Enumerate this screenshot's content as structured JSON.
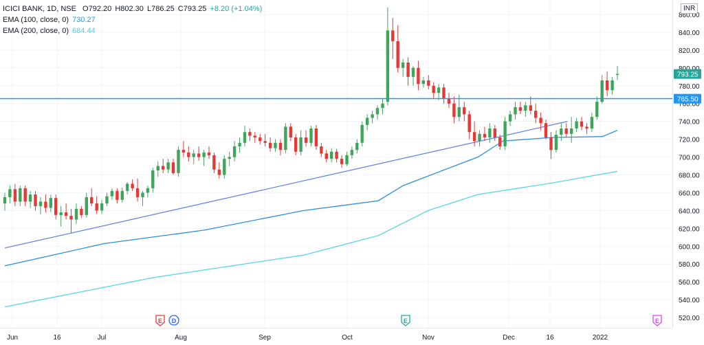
{
  "header": {
    "symbol": "ICICI BANK, 1D, NSE",
    "open": "O792.20",
    "high": "H802.30",
    "low": "L786.25",
    "close": "C793.25",
    "change": "+8.20 (+1.04%)"
  },
  "indicators": [
    {
      "label": "EMA (100, close, 0)",
      "value": "730.27",
      "color": "#2196f3"
    },
    {
      "label": "EMA (200, close, 0)",
      "value": "684.44",
      "color": "#4dd0e1"
    }
  ],
  "currency": "INR",
  "price_tags": {
    "last": "793.25",
    "level": "765.50"
  },
  "colors": {
    "up": "#26a69a",
    "up_body": "#3fa55b",
    "down": "#e53935",
    "level_line": "#2196f3",
    "ema100": "#2a8fd9",
    "ema200": "#56d4ea",
    "trendline": "#5b7fe0",
    "grid": "#f0f3fa",
    "axis_text": "#131722"
  },
  "events": [
    {
      "letters": [
        "E",
        "D"
      ],
      "month": "Aug"
    },
    {
      "letters": [
        "E"
      ],
      "month": "Nov"
    },
    {
      "letters": [
        "E"
      ],
      "month": "2022"
    }
  ],
  "chart_data": {
    "type": "candlestick",
    "y_axis": {
      "min": 510,
      "max": 870,
      "ticks": [
        520,
        540,
        560,
        580,
        600,
        620,
        640,
        660,
        680,
        700,
        720,
        740,
        760,
        780,
        800,
        820,
        840,
        860
      ],
      "unit": "INR"
    },
    "x_axis": {
      "labels": [
        "Jun",
        "16",
        "Jul",
        "Aug",
        "Sep",
        "Oct",
        "Nov",
        "Dec",
        "16",
        "2022"
      ]
    },
    "horizontal_level": 765.5,
    "candles": [
      {
        "o": 648,
        "h": 660,
        "l": 640,
        "c": 655
      },
      {
        "o": 655,
        "h": 668,
        "l": 648,
        "c": 664
      },
      {
        "o": 664,
        "h": 670,
        "l": 645,
        "c": 650
      },
      {
        "o": 650,
        "h": 668,
        "l": 645,
        "c": 665
      },
      {
        "o": 665,
        "h": 668,
        "l": 645,
        "c": 650
      },
      {
        "o": 650,
        "h": 662,
        "l": 643,
        "c": 658
      },
      {
        "o": 658,
        "h": 662,
        "l": 640,
        "c": 645
      },
      {
        "o": 645,
        "h": 655,
        "l": 636,
        "c": 650
      },
      {
        "o": 650,
        "h": 658,
        "l": 638,
        "c": 643
      },
      {
        "o": 643,
        "h": 658,
        "l": 638,
        "c": 654
      },
      {
        "o": 654,
        "h": 658,
        "l": 630,
        "c": 635
      },
      {
        "o": 635,
        "h": 645,
        "l": 622,
        "c": 638
      },
      {
        "o": 638,
        "h": 648,
        "l": 630,
        "c": 634
      },
      {
        "o": 634,
        "h": 642,
        "l": 615,
        "c": 630
      },
      {
        "o": 630,
        "h": 648,
        "l": 625,
        "c": 642
      },
      {
        "o": 642,
        "h": 645,
        "l": 632,
        "c": 635
      },
      {
        "o": 635,
        "h": 660,
        "l": 632,
        "c": 655
      },
      {
        "o": 655,
        "h": 665,
        "l": 645,
        "c": 648
      },
      {
        "o": 648,
        "h": 656,
        "l": 636,
        "c": 640
      },
      {
        "o": 640,
        "h": 652,
        "l": 636,
        "c": 648
      },
      {
        "o": 648,
        "h": 660,
        "l": 645,
        "c": 656
      },
      {
        "o": 656,
        "h": 665,
        "l": 652,
        "c": 662
      },
      {
        "o": 662,
        "h": 665,
        "l": 648,
        "c": 652
      },
      {
        "o": 652,
        "h": 666,
        "l": 649,
        "c": 662
      },
      {
        "o": 662,
        "h": 672,
        "l": 658,
        "c": 670
      },
      {
        "o": 670,
        "h": 675,
        "l": 662,
        "c": 665
      },
      {
        "o": 665,
        "h": 676,
        "l": 650,
        "c": 655
      },
      {
        "o": 655,
        "h": 662,
        "l": 645,
        "c": 660
      },
      {
        "o": 660,
        "h": 668,
        "l": 655,
        "c": 665
      },
      {
        "o": 665,
        "h": 688,
        "l": 660,
        "c": 685
      },
      {
        "o": 685,
        "h": 695,
        "l": 678,
        "c": 690
      },
      {
        "o": 690,
        "h": 698,
        "l": 682,
        "c": 686
      },
      {
        "o": 686,
        "h": 698,
        "l": 682,
        "c": 694
      },
      {
        "o": 694,
        "h": 698,
        "l": 680,
        "c": 682
      },
      {
        "o": 682,
        "h": 712,
        "l": 678,
        "c": 708
      },
      {
        "o": 708,
        "h": 718,
        "l": 700,
        "c": 705
      },
      {
        "o": 705,
        "h": 712,
        "l": 695,
        "c": 700
      },
      {
        "o": 700,
        "h": 708,
        "l": 692,
        "c": 704
      },
      {
        "o": 704,
        "h": 712,
        "l": 696,
        "c": 700
      },
      {
        "o": 700,
        "h": 708,
        "l": 690,
        "c": 705
      },
      {
        "o": 705,
        "h": 712,
        "l": 698,
        "c": 702
      },
      {
        "o": 702,
        "h": 705,
        "l": 682,
        "c": 686
      },
      {
        "o": 686,
        "h": 694,
        "l": 676,
        "c": 680
      },
      {
        "o": 680,
        "h": 702,
        "l": 676,
        "c": 698
      },
      {
        "o": 698,
        "h": 706,
        "l": 690,
        "c": 700
      },
      {
        "o": 700,
        "h": 718,
        "l": 695,
        "c": 712
      },
      {
        "o": 712,
        "h": 722,
        "l": 705,
        "c": 716
      },
      {
        "o": 716,
        "h": 735,
        "l": 712,
        "c": 728
      },
      {
        "o": 728,
        "h": 732,
        "l": 718,
        "c": 724
      },
      {
        "o": 724,
        "h": 728,
        "l": 716,
        "c": 722
      },
      {
        "o": 722,
        "h": 726,
        "l": 714,
        "c": 718
      },
      {
        "o": 718,
        "h": 726,
        "l": 712,
        "c": 716
      },
      {
        "o": 716,
        "h": 722,
        "l": 706,
        "c": 710
      },
      {
        "o": 710,
        "h": 720,
        "l": 706,
        "c": 716
      },
      {
        "o": 716,
        "h": 720,
        "l": 702,
        "c": 708
      },
      {
        "o": 708,
        "h": 738,
        "l": 704,
        "c": 734
      },
      {
        "o": 734,
        "h": 738,
        "l": 718,
        "c": 722
      },
      {
        "o": 722,
        "h": 726,
        "l": 702,
        "c": 706
      },
      {
        "o": 706,
        "h": 730,
        "l": 702,
        "c": 722
      },
      {
        "o": 722,
        "h": 730,
        "l": 712,
        "c": 716
      },
      {
        "o": 716,
        "h": 735,
        "l": 712,
        "c": 732
      },
      {
        "o": 732,
        "h": 736,
        "l": 708,
        "c": 712
      },
      {
        "o": 712,
        "h": 716,
        "l": 700,
        "c": 704
      },
      {
        "o": 704,
        "h": 708,
        "l": 694,
        "c": 698
      },
      {
        "o": 698,
        "h": 710,
        "l": 694,
        "c": 706
      },
      {
        "o": 706,
        "h": 709,
        "l": 694,
        "c": 698
      },
      {
        "o": 698,
        "h": 702,
        "l": 688,
        "c": 692
      },
      {
        "o": 692,
        "h": 706,
        "l": 690,
        "c": 702
      },
      {
        "o": 702,
        "h": 712,
        "l": 698,
        "c": 708
      },
      {
        "o": 708,
        "h": 720,
        "l": 704,
        "c": 716
      },
      {
        "o": 716,
        "h": 740,
        "l": 712,
        "c": 736
      },
      {
        "o": 736,
        "h": 748,
        "l": 730,
        "c": 744
      },
      {
        "o": 744,
        "h": 752,
        "l": 738,
        "c": 748
      },
      {
        "o": 748,
        "h": 758,
        "l": 742,
        "c": 755
      },
      {
        "o": 755,
        "h": 766,
        "l": 748,
        "c": 760
      },
      {
        "o": 762,
        "h": 868,
        "l": 758,
        "c": 842
      },
      {
        "o": 842,
        "h": 856,
        "l": 810,
        "c": 830
      },
      {
        "o": 830,
        "h": 848,
        "l": 795,
        "c": 800
      },
      {
        "o": 800,
        "h": 810,
        "l": 790,
        "c": 806
      },
      {
        "o": 806,
        "h": 812,
        "l": 780,
        "c": 790
      },
      {
        "o": 790,
        "h": 802,
        "l": 780,
        "c": 800
      },
      {
        "o": 800,
        "h": 808,
        "l": 775,
        "c": 782
      },
      {
        "o": 782,
        "h": 790,
        "l": 778,
        "c": 786
      },
      {
        "o": 786,
        "h": 792,
        "l": 776,
        "c": 780
      },
      {
        "o": 780,
        "h": 784,
        "l": 766,
        "c": 772
      },
      {
        "o": 772,
        "h": 782,
        "l": 764,
        "c": 778
      },
      {
        "o": 778,
        "h": 782,
        "l": 760,
        "c": 766
      },
      {
        "o": 766,
        "h": 772,
        "l": 755,
        "c": 760
      },
      {
        "o": 760,
        "h": 768,
        "l": 738,
        "c": 745
      },
      {
        "o": 745,
        "h": 770,
        "l": 740,
        "c": 756
      },
      {
        "o": 756,
        "h": 762,
        "l": 740,
        "c": 748
      },
      {
        "o": 748,
        "h": 752,
        "l": 720,
        "c": 728
      },
      {
        "o": 728,
        "h": 740,
        "l": 712,
        "c": 718
      },
      {
        "o": 718,
        "h": 730,
        "l": 712,
        "c": 726
      },
      {
        "o": 726,
        "h": 734,
        "l": 718,
        "c": 722
      },
      {
        "o": 722,
        "h": 738,
        "l": 716,
        "c": 732
      },
      {
        "o": 732,
        "h": 736,
        "l": 718,
        "c": 722
      },
      {
        "o": 722,
        "h": 725,
        "l": 708,
        "c": 712
      },
      {
        "o": 712,
        "h": 745,
        "l": 708,
        "c": 740
      },
      {
        "o": 740,
        "h": 752,
        "l": 735,
        "c": 748
      },
      {
        "o": 748,
        "h": 762,
        "l": 742,
        "c": 756
      },
      {
        "o": 756,
        "h": 762,
        "l": 748,
        "c": 752
      },
      {
        "o": 752,
        "h": 762,
        "l": 745,
        "c": 758
      },
      {
        "o": 758,
        "h": 768,
        "l": 748,
        "c": 752
      },
      {
        "o": 752,
        "h": 760,
        "l": 738,
        "c": 744
      },
      {
        "o": 744,
        "h": 750,
        "l": 730,
        "c": 738
      },
      {
        "o": 738,
        "h": 742,
        "l": 720,
        "c": 722
      },
      {
        "o": 722,
        "h": 728,
        "l": 698,
        "c": 708
      },
      {
        "o": 708,
        "h": 730,
        "l": 705,
        "c": 725
      },
      {
        "o": 725,
        "h": 738,
        "l": 718,
        "c": 732
      },
      {
        "o": 732,
        "h": 738,
        "l": 722,
        "c": 726
      },
      {
        "o": 726,
        "h": 745,
        "l": 716,
        "c": 732
      },
      {
        "o": 732,
        "h": 744,
        "l": 728,
        "c": 740
      },
      {
        "o": 740,
        "h": 745,
        "l": 730,
        "c": 734
      },
      {
        "o": 734,
        "h": 738,
        "l": 726,
        "c": 732
      },
      {
        "o": 732,
        "h": 750,
        "l": 728,
        "c": 745
      },
      {
        "o": 745,
        "h": 768,
        "l": 742,
        "c": 762
      },
      {
        "o": 762,
        "h": 792,
        "l": 760,
        "c": 786
      },
      {
        "o": 786,
        "h": 796,
        "l": 768,
        "c": 775
      },
      {
        "o": 775,
        "h": 790,
        "l": 770,
        "c": 786
      },
      {
        "o": 792.2,
        "h": 802.3,
        "l": 786.25,
        "c": 793.25
      }
    ],
    "ema100_anchors": [
      [
        0,
        578
      ],
      [
        20,
        603
      ],
      [
        40,
        618
      ],
      [
        60,
        640
      ],
      [
        75,
        651
      ],
      [
        80,
        668
      ],
      [
        95,
        700
      ],
      [
        100,
        718
      ],
      [
        110,
        722
      ],
      [
        120,
        723
      ],
      [
        123,
        730
      ]
    ],
    "ema200_anchors": [
      [
        0,
        532
      ],
      [
        30,
        565
      ],
      [
        60,
        590
      ],
      [
        75,
        612
      ],
      [
        85,
        640
      ],
      [
        95,
        658
      ],
      [
        110,
        671
      ],
      [
        123,
        684
      ]
    ],
    "trendline": {
      "start": [
        0,
        598
      ],
      "end": [
        113,
        740
      ]
    }
  }
}
